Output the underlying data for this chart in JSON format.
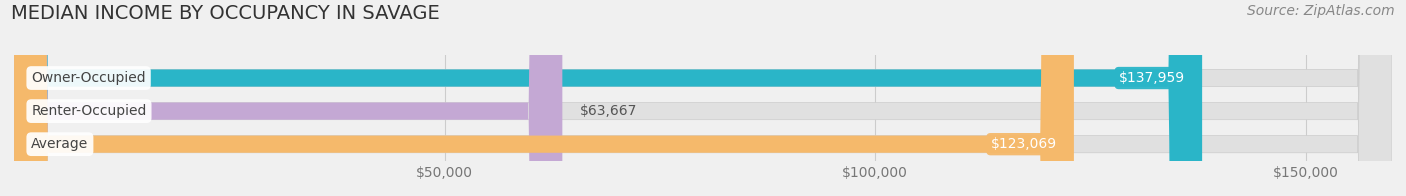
{
  "title": "MEDIAN INCOME BY OCCUPANCY IN SAVAGE",
  "source": "Source: ZipAtlas.com",
  "categories": [
    "Owner-Occupied",
    "Renter-Occupied",
    "Average"
  ],
  "values": [
    137959,
    63667,
    123069
  ],
  "bar_colors": [
    "#2ab5c8",
    "#c4a8d4",
    "#f5b96b"
  ],
  "label_texts": [
    "$137,959",
    "$63,667",
    "$123,069"
  ],
  "xlim": [
    0,
    160000
  ],
  "xticks": [
    50000,
    100000,
    150000
  ],
  "xtick_labels": [
    "$50,000",
    "$100,000",
    "$150,000"
  ],
  "gridline_ticks": [
    0,
    50000,
    100000,
    150000
  ],
  "background_color": "#f0f0f0",
  "bar_bg_color": "#e0e0e0",
  "title_fontsize": 14,
  "source_fontsize": 10,
  "tick_fontsize": 10,
  "label_fontsize": 10,
  "cat_fontsize": 10
}
